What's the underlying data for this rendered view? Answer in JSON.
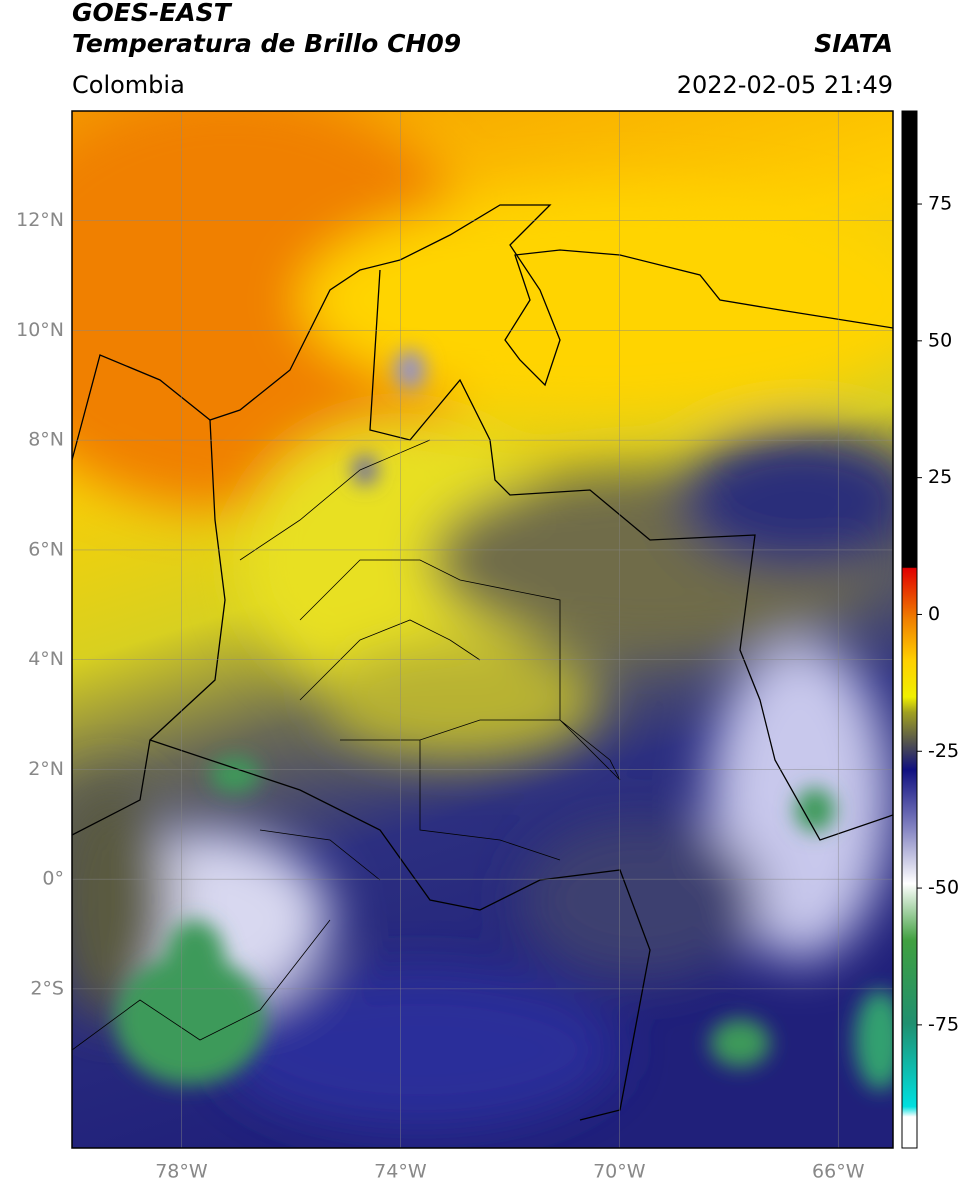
{
  "header": {
    "title_line1": "GOES-EAST",
    "title_line2": "Temperatura de Brillo CH09",
    "source": "SIATA",
    "region": "Colombia",
    "datetime": "2022-02-05 21:49"
  },
  "map": {
    "lon_range": [
      -80,
      -65
    ],
    "lat_range": [
      -4.9,
      14
    ],
    "lat_ticks": [
      {
        "value": 12,
        "label": "12°N"
      },
      {
        "value": 10,
        "label": "10°N"
      },
      {
        "value": 8,
        "label": "8°N"
      },
      {
        "value": 6,
        "label": "6°N"
      },
      {
        "value": 4,
        "label": "4°N"
      },
      {
        "value": 2,
        "label": "2°N"
      },
      {
        "value": 0,
        "label": "0°"
      },
      {
        "value": -2,
        "label": "2°S"
      }
    ],
    "lon_ticks": [
      {
        "value": -78,
        "label": "78°W"
      },
      {
        "value": -74,
        "label": "74°W"
      },
      {
        "value": -70,
        "label": "70°W"
      },
      {
        "value": -66,
        "label": "66°W"
      }
    ]
  },
  "colorbar": {
    "range": [
      -97.5,
      92
    ],
    "ticks": [
      75,
      50,
      25,
      0,
      -25,
      -50,
      -75
    ]
  }
}
